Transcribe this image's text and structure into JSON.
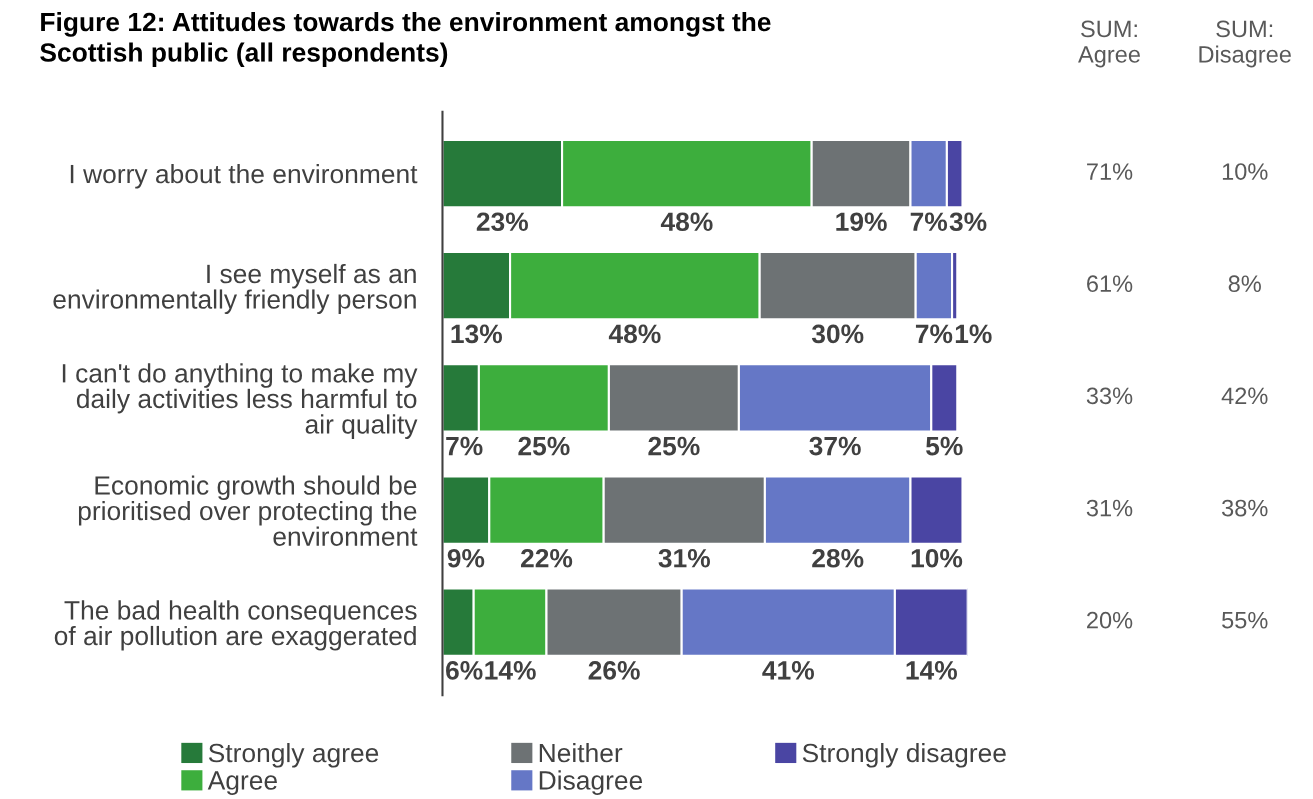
{
  "chart_data": {
    "type": "bar",
    "orientation": "horizontal",
    "stacked": true,
    "legend": "bottom",
    "grid": false,
    "title": "Figure 12: Attitudes towards the environment amongst the\nScottish public (all respondents)",
    "categories": [
      "I worry about the environment",
      "I see myself as an\nenvironmentally friendly person",
      "I can't do anything to make my\ndaily activities less harmful to\nair quality",
      "Economic growth should be\nprioritised over protecting the\nenvironment",
      "The bad health consequences\nof air pollution are exaggerated"
    ],
    "series": [
      {
        "name": "Strongly agree",
        "color": "#267a3a",
        "values": [
          23,
          13,
          7,
          9,
          6
        ],
        "value_labels": [
          "23%",
          "13%",
          "7%",
          "9%",
          "6%"
        ]
      },
      {
        "name": "Agree",
        "color": "#3dae3d",
        "values": [
          48,
          48,
          25,
          22,
          14
        ],
        "value_labels": [
          "48%",
          "48%",
          "25%",
          "22%",
          "14%"
        ]
      },
      {
        "name": "Neither",
        "color": "#6d7274",
        "values": [
          19,
          30,
          25,
          31,
          26
        ],
        "value_labels": [
          "19%",
          "30%",
          "25%",
          "31%",
          "26%"
        ]
      },
      {
        "name": "Disagree",
        "color": "#6577c6",
        "values": [
          7,
          7,
          37,
          28,
          41
        ],
        "value_labels": [
          "7%",
          "7%",
          "37%",
          "28%",
          "41%"
        ]
      },
      {
        "name": "Strongly disagree",
        "color": "#4a45a3",
        "values": [
          3,
          1,
          5,
          10,
          14
        ],
        "value_labels": [
          "3%",
          "1%",
          "5%",
          "10%",
          "14%"
        ]
      }
    ],
    "annotations": [
      "SUM:\nAgree",
      "SUM:\nDisagree",
      "71%",
      "10%",
      "61%",
      "8%",
      "33%",
      "42%",
      "31%",
      "38%",
      "20%",
      "55%"
    ]
  }
}
